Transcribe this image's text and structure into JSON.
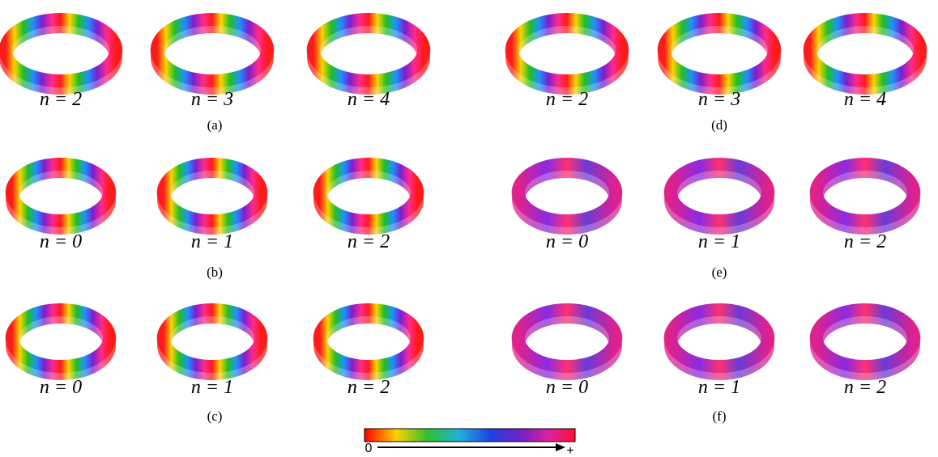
{
  "panels": [
    {
      "label": "(a)",
      "modes": [
        "n = 2",
        "n = 3",
        "n = 4"
      ]
    },
    {
      "label": "(b)",
      "modes": [
        "n = 0",
        "n = 1",
        "n = 2"
      ]
    },
    {
      "label": "(c)",
      "modes": [
        "n = 0",
        "n = 1",
        "n = 2"
      ]
    },
    {
      "label": "(d)",
      "modes": [
        "n = 2",
        "n = 3",
        "n = 4"
      ]
    },
    {
      "label": "(e)",
      "modes": [
        "n = 0",
        "n = 1",
        "n = 2"
      ]
    },
    {
      "label": "(f)",
      "modes": [
        "n = 0",
        "n = 1",
        "n = 2"
      ]
    }
  ],
  "colorbar": {
    "min_label": "0",
    "max_label": "+"
  }
}
